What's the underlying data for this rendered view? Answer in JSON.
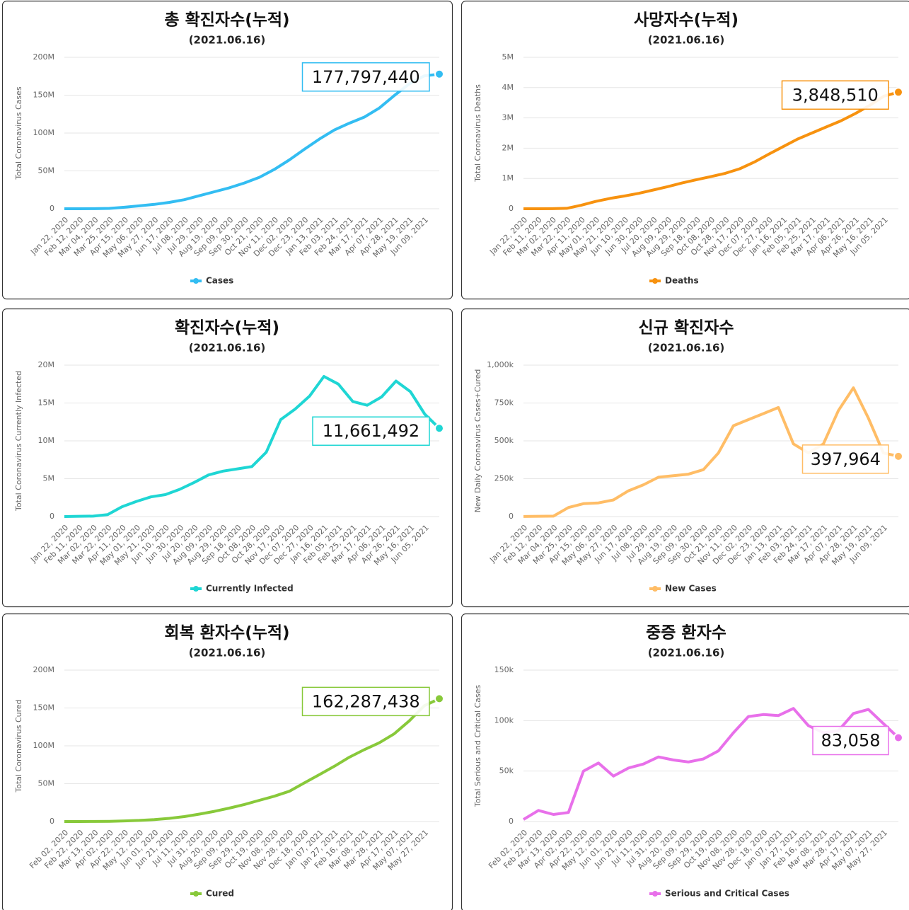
{
  "chart_data": [
    {
      "type": "line",
      "title": "총 확진자수(누적)",
      "subtitle": "(2021.06.16)",
      "y_label": "Total Coronavirus Cases",
      "categories": [
        "Jan 22, 2020",
        "Feb 12, 2020",
        "Mar 04, 2020",
        "Mar 25, 2020",
        "Apr 15, 2020",
        "May 06, 2020",
        "May 27, 2020",
        "Jun 17, 2020",
        "Jul 08, 2020",
        "Jul 29, 2020",
        "Aug 19, 2020",
        "Sep 09, 2020",
        "Sep 30, 2020",
        "Oct 21, 2020",
        "Nov 11, 2020",
        "Dec 02, 2020",
        "Dec 23, 2020",
        "Jan 13, 2021",
        "Feb 03, 2021",
        "Feb 24, 2021",
        "Mar 17, 2021",
        "Apr 07, 2021",
        "Apr 28, 2021",
        "May 19, 2021",
        "Jun 09, 2021",
        null
      ],
      "series": [
        {
          "name": "Cases",
          "color": "#33bdf2",
          "values": [
            600,
            45000,
            95000,
            470000,
            2000000,
            3800000,
            5800000,
            8400000,
            12000000,
            17200000,
            22400000,
            27700000,
            34000000,
            41500000,
            52000000,
            64500000,
            78500000,
            92000000,
            104000000,
            113000000,
            121000000,
            133000000,
            149500000,
            165000000,
            175500000,
            177797440
          ],
          "value_labels": [
            null,
            null,
            null,
            null,
            null,
            null,
            null,
            null,
            null,
            null,
            null,
            null,
            null,
            null,
            null,
            null,
            null,
            null,
            null,
            null,
            null,
            null,
            null,
            null,
            null,
            "177,797,440"
          ]
        }
      ],
      "ylim": [
        0,
        200000000
      ],
      "yticks": [
        0,
        {
          "value": 50000000,
          "label": "50M"
        },
        {
          "value": 100000000,
          "label": "100M"
        },
        {
          "value": 150000000,
          "label": "150M"
        },
        {
          "value": 200000000,
          "label": "200M"
        }
      ],
      "grid": true
    },
    {
      "type": "line",
      "title": "사망자수(누적)",
      "subtitle": "(2021.06.16)",
      "y_label": "Total Coronavirus Deaths",
      "categories": [
        "Jan 22, 2020",
        "Feb 11, 2020",
        "Mar 02, 2020",
        "Mar 22, 2020",
        "Apr 11, 2020",
        "May 01, 2020",
        "May 21, 2020",
        "Jun 10, 2020",
        "Jun 30, 2020",
        "Jul 20, 2020",
        "Aug 09, 2020",
        "Aug 29, 2020",
        "Sep 18, 2020",
        "Oct 08, 2020",
        "Oct 28, 2020",
        "Nov 17, 2020",
        "Dec 07, 2020",
        "Dec 27, 2020",
        "Jan 16, 2021",
        "Feb 05, 2021",
        "Feb 25, 2021",
        "Mar 17, 2021",
        "Apr 06, 2021",
        "Apr 26, 2021",
        "May 16, 2021",
        "Jun 05, 2021",
        null
      ],
      "series": [
        {
          "name": "Deaths",
          "color": "#f7920f",
          "values": [
            17,
            1000,
            3100,
            14000,
            115000,
            240000,
            340000,
            420000,
            510000,
            620000,
            730000,
            850000,
            960000,
            1060000,
            1170000,
            1320000,
            1540000,
            1800000,
            2050000,
            2300000,
            2500000,
            2700000,
            2900000,
            3140000,
            3410000,
            3720000,
            3848510
          ],
          "value_labels": [
            null,
            null,
            null,
            null,
            null,
            null,
            null,
            null,
            null,
            null,
            null,
            null,
            null,
            null,
            null,
            null,
            null,
            null,
            null,
            null,
            null,
            null,
            null,
            null,
            null,
            null,
            "3,848,510"
          ]
        }
      ],
      "ylim": [
        0,
        5000000
      ],
      "yticks": [
        0,
        {
          "value": 1000000,
          "label": "1M"
        },
        {
          "value": 2000000,
          "label": "2M"
        },
        {
          "value": 3000000,
          "label": "3M"
        },
        {
          "value": 4000000,
          "label": "4M"
        },
        {
          "value": 5000000,
          "label": "5M"
        }
      ],
      "grid": true
    },
    {
      "type": "line",
      "title": "확진자수(누적)",
      "subtitle": "(2021.06.16)",
      "y_label": "Total Coronavirus Currently Infected",
      "categories": [
        "Jan 22, 2020",
        "Feb 11, 2020",
        "Mar 02, 2020",
        "Mar 22, 2020",
        "Apr 11, 2020",
        "May 01, 2020",
        "May 21, 2020",
        "Jun 10, 2020",
        "Jun 30, 2020",
        "Jul 20, 2020",
        "Aug 09, 2020",
        "Aug 29, 2020",
        "Sep 18, 2020",
        "Oct 08, 2020",
        "Oct 28, 2020",
        "Nov 17, 2020",
        "Dec 07, 2020",
        "Dec 27, 2020",
        "Jan 16, 2021",
        "Feb 05, 2021",
        "Feb 25, 2021",
        "Mar 17, 2021",
        "Apr 06, 2021",
        "Apr 26, 2021",
        "May 16, 2021",
        "Jun 05, 2021",
        null
      ],
      "series": [
        {
          "name": "Currently Infected",
          "color": "#1fd6d4",
          "values": [
            600,
            40000,
            60000,
            250000,
            1300000,
            2000000,
            2600000,
            2900000,
            3600000,
            4500000,
            5500000,
            6000000,
            6300000,
            6600000,
            8500000,
            12800000,
            14200000,
            15900000,
            18500000,
            17500000,
            15200000,
            14700000,
            15800000,
            17900000,
            16500000,
            13500000,
            11661492
          ],
          "value_labels": [
            null,
            null,
            null,
            null,
            null,
            null,
            null,
            null,
            null,
            null,
            null,
            null,
            null,
            null,
            null,
            null,
            null,
            null,
            null,
            null,
            null,
            null,
            null,
            null,
            null,
            null,
            "11,661,492"
          ]
        }
      ],
      "ylim": [
        0,
        20000000
      ],
      "yticks": [
        0,
        {
          "value": 5000000,
          "label": "5M"
        },
        {
          "value": 10000000,
          "label": "10M"
        },
        {
          "value": 15000000,
          "label": "15M"
        },
        {
          "value": 20000000,
          "label": "20M"
        }
      ],
      "grid": true
    },
    {
      "type": "line",
      "title": "신규 확진자수",
      "subtitle": "(2021.06.16)",
      "y_label": "New Daily Coronavirus Cases+Cured",
      "categories": [
        "Jan 22, 2020",
        "Feb 12, 2020",
        "Mar 04, 2020",
        "Mar 25, 2020",
        "Apr 15, 2020",
        "May 06, 2020",
        "May 27, 2020",
        "Jun 17, 2020",
        "Jul 08, 2020",
        "Jul 29, 2020",
        "Aug 19, 2020",
        "Sep 09, 2020",
        "Sep 30, 2020",
        "Oct 21, 2020",
        "Nov 11, 2020",
        "Dec 02, 2020",
        "Dec 23, 2020",
        "Jan 13, 2021",
        "Feb 03, 2021",
        "Feb 24, 2021",
        "Mar 17, 2021",
        "Apr 07, 2021",
        "Apr 28, 2021",
        "May 19, 2021",
        "Jun 09, 2021",
        null
      ],
      "series": [
        {
          "name": "New Cases",
          "color": "#ffbd66",
          "values": [
            600,
            2000,
            3000,
            60000,
            85000,
            90000,
            110000,
            170000,
            210000,
            260000,
            270000,
            280000,
            310000,
            420000,
            600000,
            640000,
            680000,
            720000,
            480000,
            420000,
            480000,
            700000,
            850000,
            650000,
            420000,
            397964
          ],
          "value_labels": [
            null,
            null,
            null,
            null,
            null,
            null,
            null,
            null,
            null,
            null,
            null,
            null,
            null,
            null,
            null,
            null,
            null,
            null,
            null,
            null,
            null,
            null,
            null,
            null,
            null,
            "397,964"
          ]
        }
      ],
      "ylim": [
        0,
        1000000
      ],
      "yticks": [
        0,
        {
          "value": 250000,
          "label": "250k"
        },
        {
          "value": 500000,
          "label": "500k"
        },
        {
          "value": 750000,
          "label": "750k"
        },
        {
          "value": 1000000,
          "label": "1,000k"
        }
      ],
      "grid": true
    },
    {
      "type": "line",
      "title": "회복 환자수(누적)",
      "subtitle": "(2021.06.16)",
      "y_label": "Total Coronavirus Cured",
      "categories": [
        "Feb 02, 2020",
        "Feb 22, 2020",
        "Mar 13, 2020",
        "Apr 02, 2020",
        "Apr 22, 2020",
        "May 12, 2020",
        "Jun 01, 2020",
        "Jun 21, 2020",
        "Jul 11, 2020",
        "Jul 31, 2020",
        "Aug 20, 2020",
        "Sep 09, 2020",
        "Sep 29, 2020",
        "Oct 19, 2020",
        "Nov 08, 2020",
        "Nov 28, 2020",
        "Dec 18, 2020",
        "Jan 07, 2021",
        "Jan 27, 2021",
        "Feb 16, 2021",
        "Mar 08, 2021",
        "Mar 28, 2021",
        "Apr 17, 2021",
        "May 07, 2021",
        "May 27, 2021",
        null
      ],
      "series": [
        {
          "name": "Cured",
          "color": "#88c93a",
          "values": [
            500,
            20000,
            80000,
            300000,
            800000,
            1500000,
            2600000,
            4200000,
            6500000,
            9800000,
            13500000,
            17800000,
            22500000,
            28000000,
            33500000,
            40000000,
            51000000,
            62000000,
            73000000,
            85000000,
            95000000,
            104000000,
            116000000,
            133000000,
            153000000,
            162287438
          ],
          "value_labels": [
            null,
            null,
            null,
            null,
            null,
            null,
            null,
            null,
            null,
            null,
            null,
            null,
            null,
            null,
            null,
            null,
            null,
            null,
            null,
            null,
            null,
            null,
            null,
            null,
            null,
            "162,287,438"
          ]
        }
      ],
      "ylim": [
        0,
        200000000
      ],
      "yticks": [
        0,
        {
          "value": 50000000,
          "label": "50M"
        },
        {
          "value": 100000000,
          "label": "100M"
        },
        {
          "value": 150000000,
          "label": "150M"
        },
        {
          "value": 200000000,
          "label": "200M"
        }
      ],
      "grid": true
    },
    {
      "type": "line",
      "title": "중증 환자수",
      "subtitle": "(2021.06.16)",
      "y_label": "Total Serious and Critical Cases",
      "categories": [
        "Feb 02, 2020",
        "Feb 22, 2020",
        "Mar 13, 2020",
        "Apr 02, 2020",
        "Apr 22, 2020",
        "May 12, 2020",
        "Jun 01, 2020",
        "Jun 21, 2020",
        "Jul 11, 2020",
        "Jul 31, 2020",
        "Aug 20, 2020",
        "Sep 09, 2020",
        "Sep 29, 2020",
        "Oct 19, 2020",
        "Nov 08, 2020",
        "Nov 28, 2020",
        "Dec 18, 2020",
        "Jan 07, 2021",
        "Jan 27, 2021",
        "Feb 16, 2021",
        "Mar 08, 2021",
        "Mar 28, 2021",
        "Apr 17, 2021",
        "May 07, 2021",
        "May 27, 2021",
        null
      ],
      "series": [
        {
          "name": "Serious and Critical Cases",
          "color": "#e870ea",
          "values": [
            2000,
            11000,
            7000,
            9000,
            50000,
            58000,
            45000,
            53000,
            57000,
            64000,
            61000,
            59000,
            62000,
            70000,
            88000,
            104000,
            106000,
            105000,
            112000,
            95000,
            88000,
            90000,
            107000,
            111000,
            97000,
            83058
          ],
          "value_labels": [
            null,
            null,
            null,
            null,
            null,
            null,
            null,
            null,
            null,
            null,
            null,
            null,
            null,
            null,
            null,
            null,
            null,
            null,
            null,
            null,
            null,
            null,
            null,
            null,
            null,
            "83,058"
          ]
        }
      ],
      "ylim": [
        0,
        150000
      ],
      "yticks": [
        0,
        {
          "value": 50000,
          "label": "50k"
        },
        {
          "value": 100000,
          "label": "100k"
        },
        {
          "value": 150000,
          "label": "150k"
        }
      ],
      "grid": true
    }
  ]
}
